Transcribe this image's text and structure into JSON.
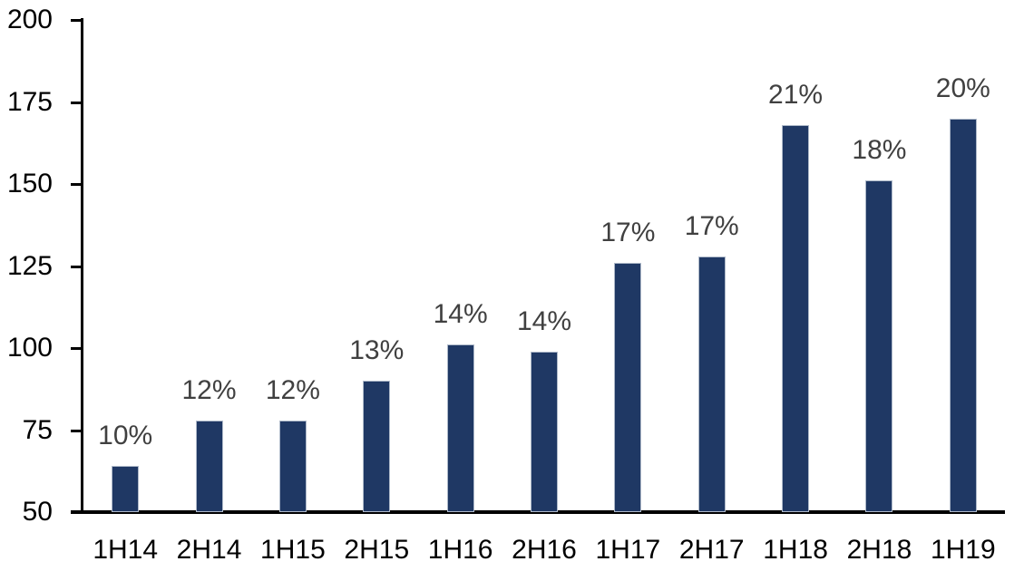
{
  "chart_data": {
    "type": "bar",
    "categories": [
      "1H14",
      "2H14",
      "1H15",
      "2H15",
      "1H16",
      "2H16",
      "1H17",
      "2H17",
      "1H18",
      "2H18",
      "1H19"
    ],
    "values": [
      64,
      78,
      78,
      90,
      101,
      99,
      126,
      128,
      168,
      151,
      170
    ],
    "bar_labels": [
      "10%",
      "12%",
      "12%",
      "13%",
      "14%",
      "14%",
      "17%",
      "17%",
      "21%",
      "18%",
      "20%"
    ],
    "title": "",
    "xlabel": "",
    "ylabel": "",
    "ylim": [
      50,
      200
    ],
    "yticks": [
      50,
      75,
      100,
      125,
      150,
      175,
      200
    ],
    "grid": "off",
    "legend": "none",
    "colors": {
      "bar_fill": "#1F3864",
      "bar_border": "#AEB9C9",
      "axis_line": "#000000",
      "axis_text": "#000000",
      "data_label": "#404040",
      "background": "#FFFFFF"
    }
  }
}
